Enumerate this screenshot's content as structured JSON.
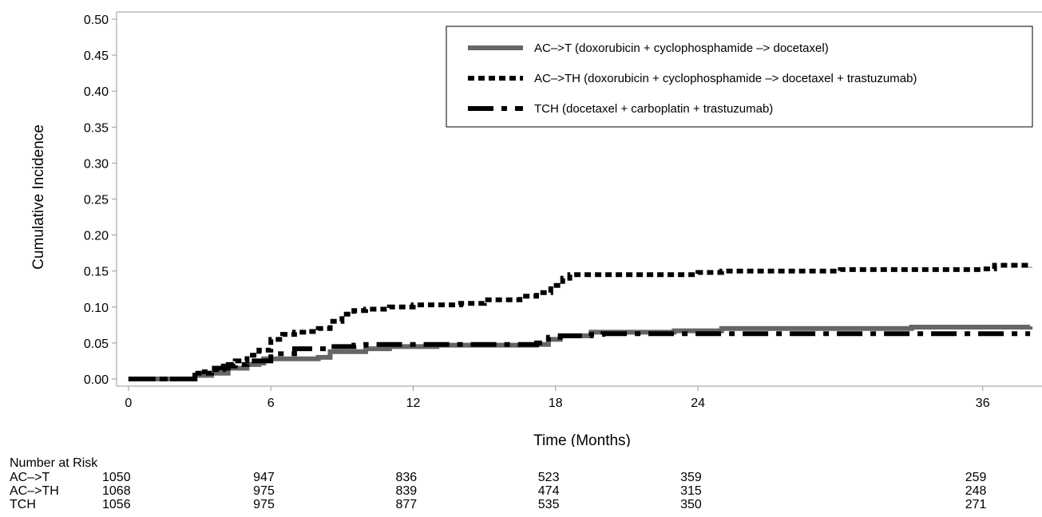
{
  "chart_data": {
    "type": "line",
    "xlabel": "Time (Months)",
    "ylabel": "Cumulative Incidence",
    "xlim": [
      -0.5,
      38.5
    ],
    "ylim": [
      -0.01,
      0.51
    ],
    "x_ticks": [
      0,
      6,
      12,
      18,
      24,
      36
    ],
    "y_ticks": [
      "0.00",
      "0.05",
      "0.10",
      "0.15",
      "0.20",
      "0.25",
      "0.30",
      "0.35",
      "0.40",
      "0.45",
      "0.50"
    ],
    "legend_position": "top-right",
    "series": [
      {
        "name": "AC–>T (doxorubicin + cyclophosphamide –> docetaxel)",
        "color": "#666666",
        "style": "solid",
        "points": [
          [
            0,
            0
          ],
          [
            2.5,
            0
          ],
          [
            2.8,
            0.005
          ],
          [
            3.5,
            0.008
          ],
          [
            4.2,
            0.015
          ],
          [
            5,
            0.02
          ],
          [
            5.5,
            0.022
          ],
          [
            5.7,
            0.028
          ],
          [
            8,
            0.03
          ],
          [
            8.5,
            0.038
          ],
          [
            10,
            0.042
          ],
          [
            11,
            0.045
          ],
          [
            12,
            0.045
          ],
          [
            13,
            0.047
          ],
          [
            17.2,
            0.048
          ],
          [
            17.7,
            0.055
          ],
          [
            18.2,
            0.06
          ],
          [
            19.5,
            0.065
          ],
          [
            23,
            0.067
          ],
          [
            25,
            0.07
          ],
          [
            33,
            0.072
          ],
          [
            38,
            0.073
          ]
        ]
      },
      {
        "name": "AC–>TH (doxorubicin + cyclophosphamide –> docetaxel + trastuzumab)",
        "color": "#000000",
        "style": "dotted",
        "points": [
          [
            0,
            0
          ],
          [
            2.5,
            0
          ],
          [
            2.8,
            0.008
          ],
          [
            3.5,
            0.013
          ],
          [
            4,
            0.018
          ],
          [
            4.5,
            0.025
          ],
          [
            5,
            0.033
          ],
          [
            5.5,
            0.04
          ],
          [
            6,
            0.055
          ],
          [
            6.5,
            0.062
          ],
          [
            7,
            0.065
          ],
          [
            7.5,
            0.066
          ],
          [
            8,
            0.07
          ],
          [
            8.5,
            0.08
          ],
          [
            9,
            0.09
          ],
          [
            9.5,
            0.095
          ],
          [
            10,
            0.097
          ],
          [
            11,
            0.1
          ],
          [
            12,
            0.103
          ],
          [
            14,
            0.105
          ],
          [
            15,
            0.11
          ],
          [
            16.5,
            0.115
          ],
          [
            17.2,
            0.12
          ],
          [
            17.8,
            0.13
          ],
          [
            18.3,
            0.14
          ],
          [
            18.6,
            0.145
          ],
          [
            22,
            0.145
          ],
          [
            24,
            0.148
          ],
          [
            25,
            0.15
          ],
          [
            29,
            0.15
          ],
          [
            30,
            0.152
          ],
          [
            36,
            0.153
          ],
          [
            36.5,
            0.158
          ],
          [
            38,
            0.155
          ]
        ]
      },
      {
        "name": "TCH (docetaxel + carboplatin + trastuzumab)",
        "color": "#000000",
        "style": "dashdot",
        "points": [
          [
            0,
            0
          ],
          [
            2.5,
            0
          ],
          [
            2.8,
            0.01
          ],
          [
            3.5,
            0.015
          ],
          [
            4.2,
            0.02
          ],
          [
            5,
            0.025
          ],
          [
            6,
            0.035
          ],
          [
            7,
            0.042
          ],
          [
            8.5,
            0.045
          ],
          [
            9.5,
            0.047
          ],
          [
            10,
            0.048
          ],
          [
            12,
            0.048
          ],
          [
            17.2,
            0.05
          ],
          [
            17.7,
            0.058
          ],
          [
            18.2,
            0.06
          ],
          [
            19.5,
            0.062
          ],
          [
            20,
            0.063
          ],
          [
            38,
            0.063
          ]
        ]
      }
    ]
  },
  "risk_table": {
    "title": "Number at Risk",
    "times": [
      0,
      6,
      12,
      18,
      24,
      36
    ],
    "rows": [
      {
        "label": "AC–>T",
        "values": [
          "1050",
          "947",
          "836",
          "523",
          "359",
          "259"
        ]
      },
      {
        "label": "AC–>TH",
        "values": [
          "1068",
          "975",
          "839",
          "474",
          "315",
          "248"
        ]
      },
      {
        "label": "TCH",
        "values": [
          "1056",
          "975",
          "877",
          "535",
          "350",
          "271"
        ]
      }
    ]
  }
}
